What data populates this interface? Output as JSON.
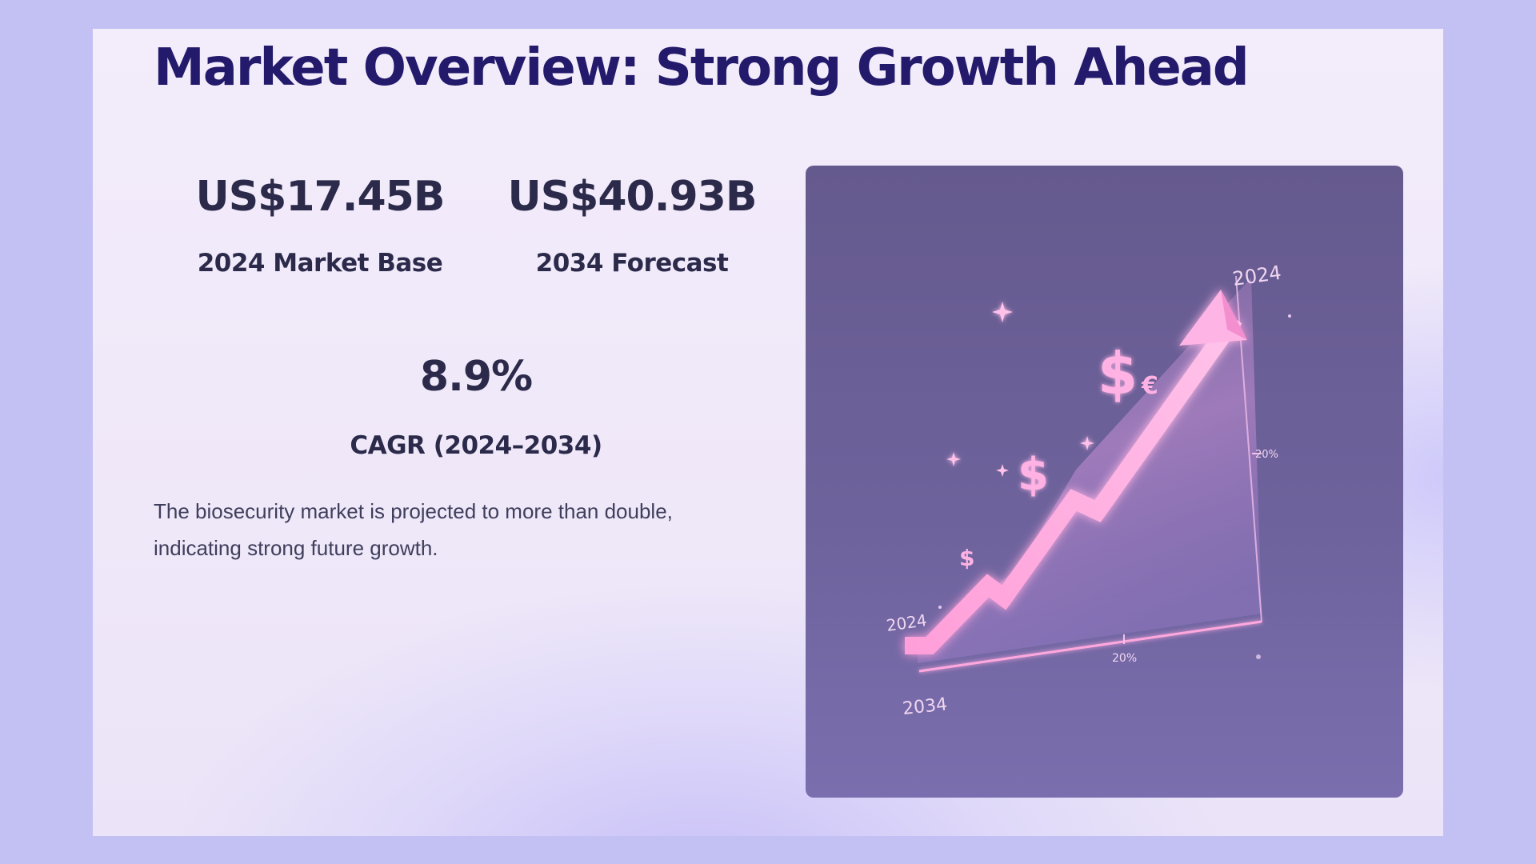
{
  "title": "Market Overview: Strong Growth Ahead",
  "stats": [
    {
      "value": "US$17.45B",
      "label": "2024 Market Base"
    },
    {
      "value": "US$40.93B",
      "label": "2034 Forecast"
    },
    {
      "value": "8.9%",
      "label": "CAGR (2024–2034)"
    }
  ],
  "description": "The biosecurity market is projected to more than double, indicating strong future growth.",
  "illustration": {
    "labels": {
      "top_right": "2024",
      "left": "2024",
      "bottom": "2034",
      "right_axis": "20%",
      "bottom_axis": "20%",
      "dollar": "$",
      "euro": "€"
    },
    "colors": {
      "background": "#6a5e98",
      "arrow": "#f7a6dd",
      "glow": "#ff9fe0"
    }
  }
}
